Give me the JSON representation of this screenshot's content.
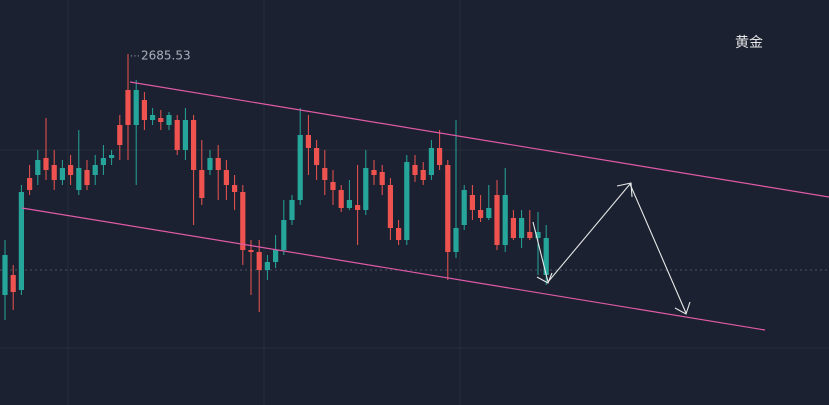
{
  "chart_data": {
    "type": "candlestick",
    "title": "黄金",
    "ylim": [
      2510,
      2712.5
    ],
    "up_color": "#26a69a",
    "down_color": "#ef5350",
    "candles": [
      [
        2565,
        2592.5,
        2552.5,
        2585
      ],
      [
        2575,
        2580,
        2557.5,
        2566.5
      ],
      [
        2567.5,
        2620,
        2565,
        2616.5
      ],
      [
        2623.5,
        2630,
        2615,
        2617.5
      ],
      [
        2625,
        2637.5,
        2620,
        2632.5
      ],
      [
        2633.5,
        2653.5,
        2622.5,
        2627.5
      ],
      [
        2630,
        2637.5,
        2617.5,
        2622.5
      ],
      [
        2622.5,
        2632.5,
        2620,
        2628.5
      ],
      [
        2630,
        2635,
        2620,
        2625
      ],
      [
        2617.5,
        2647.5,
        2615,
        2628.5
      ],
      [
        2627.5,
        2632.5,
        2617.5,
        2620
      ],
      [
        2625,
        2635,
        2620,
        2630
      ],
      [
        2630,
        2640,
        2625,
        2633.5
      ],
      [
        2633.5,
        2637.5,
        2630,
        2635
      ],
      [
        2650,
        2655,
        2632.5,
        2640
      ],
      [
        2667.5,
        2685.53,
        2632.5,
        2650
      ],
      [
        2650,
        2672.5,
        2620,
        2667.5
      ],
      [
        2662.5,
        2666.5,
        2647.5,
        2652.5
      ],
      [
        2652.5,
        2658.5,
        2650,
        2655
      ],
      [
        2653.5,
        2657.5,
        2647.5,
        2651.5
      ],
      [
        2650,
        2656.5,
        2647.5,
        2655
      ],
      [
        2652.5,
        2655,
        2635,
        2637.5
      ],
      [
        2637.5,
        2658.5,
        2632.5,
        2652.5
      ],
      [
        2652.5,
        2655,
        2600,
        2627.5
      ],
      [
        2627.5,
        2642.5,
        2610,
        2613.5
      ],
      [
        2627.5,
        2637.5,
        2625,
        2633.5
      ],
      [
        2633.5,
        2640,
        2612.5,
        2627.5
      ],
      [
        2627.5,
        2632.5,
        2612.5,
        2620
      ],
      [
        2620,
        2625,
        2607.5,
        2616.5
      ],
      [
        2616.5,
        2620,
        2580,
        2587.5
      ],
      [
        2587.5,
        2592.5,
        2565,
        2586.5
      ],
      [
        2586.5,
        2592.5,
        2556.5,
        2577.5
      ],
      [
        2577.5,
        2585,
        2572.5,
        2581.5
      ],
      [
        2581.5,
        2595,
        2578.5,
        2587.5
      ],
      [
        2587.5,
        2612.5,
        2585,
        2602.5
      ],
      [
        2602.5,
        2615,
        2600,
        2612.5
      ],
      [
        2612.5,
        2658.5,
        2610,
        2645
      ],
      [
        2645,
        2655,
        2625,
        2638.5
      ],
      [
        2638.5,
        2642.5,
        2622.5,
        2630
      ],
      [
        2628.5,
        2637.5,
        2615,
        2622.5
      ],
      [
        2621.5,
        2627.5,
        2610,
        2617.5
      ],
      [
        2617.5,
        2620,
        2606.5,
        2608.5
      ],
      [
        2608.5,
        2622.5,
        2607.5,
        2612.5
      ],
      [
        2610,
        2630,
        2590,
        2607.5
      ],
      [
        2607.5,
        2637.5,
        2605,
        2628.5
      ],
      [
        2627.5,
        2632.5,
        2620,
        2625
      ],
      [
        2626.5,
        2630,
        2615,
        2620
      ],
      [
        2620,
        2623.5,
        2592.5,
        2598.5
      ],
      [
        2598.5,
        2602.5,
        2590,
        2592.5
      ],
      [
        2592.5,
        2635,
        2590,
        2631.5
      ],
      [
        2630,
        2635,
        2621.5,
        2625
      ],
      [
        2627.5,
        2631.5,
        2620,
        2622.5
      ],
      [
        2625,
        2642.5,
        2622.5,
        2638.5
      ],
      [
        2638.5,
        2647.5,
        2627.5,
        2630
      ],
      [
        2630,
        2632.5,
        2572.5,
        2586.5
      ],
      [
        2586.5,
        2652.5,
        2583.5,
        2598.5
      ],
      [
        2600,
        2620,
        2597.5,
        2617.5
      ],
      [
        2615,
        2620,
        2602.5,
        2607.5
      ],
      [
        2607.5,
        2615,
        2601.5,
        2603.5
      ],
      [
        2603.5,
        2620,
        2602.5,
        2608.5
      ],
      [
        2615,
        2622.5,
        2587.5,
        2590
      ],
      [
        2590,
        2628.5,
        2586.5,
        2615
      ],
      [
        2603.5,
        2607.5,
        2592.5,
        2593.5
      ],
      [
        2593.5,
        2607.5,
        2588.5,
        2603.5
      ],
      [
        2596.5,
        2607.5,
        2592.5,
        2593.5
      ],
      [
        2593.5,
        2606.5,
        2575,
        2596.5
      ],
      [
        2575,
        2600,
        2570,
        2593.5
      ]
    ],
    "high_label_index": 15
  }
}
